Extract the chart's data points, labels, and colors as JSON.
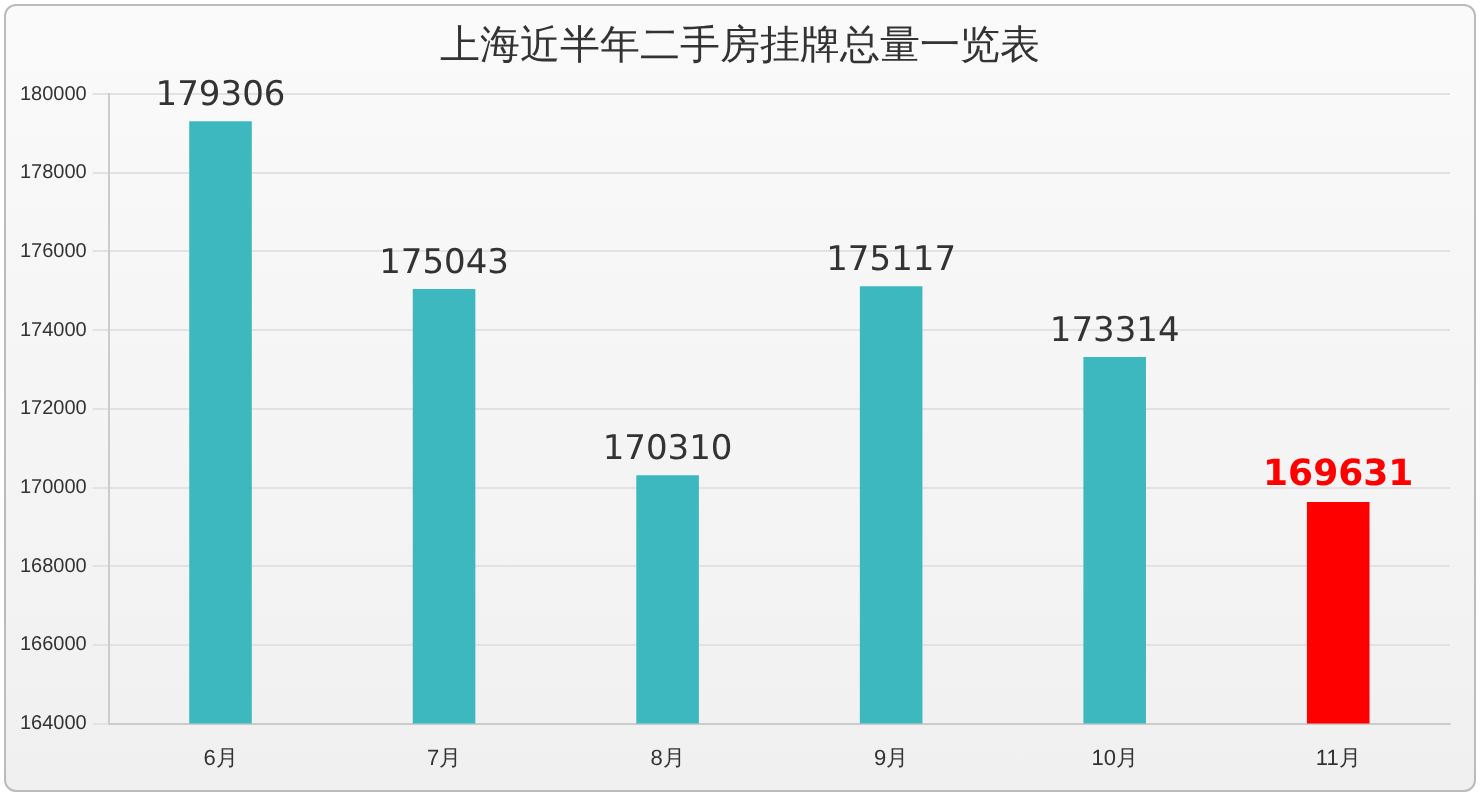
{
  "chart_data": {
    "type": "bar",
    "title": "上海近半年二手房挂牌总量一览表",
    "categories": [
      "6月",
      "7月",
      "8月",
      "9月",
      "10月",
      "11月"
    ],
    "values": [
      179306,
      175043,
      170310,
      175117,
      173314,
      169631
    ],
    "colors": [
      "#3db8bf",
      "#3db8bf",
      "#3db8bf",
      "#3db8bf",
      "#3db8bf",
      "#ff0000"
    ],
    "ylim": [
      164000,
      180000
    ],
    "yticks": [
      164000,
      166000,
      168000,
      170000,
      172000,
      174000,
      176000,
      178000,
      180000
    ],
    "grid": "y",
    "legend": false,
    "data_labels": true
  }
}
